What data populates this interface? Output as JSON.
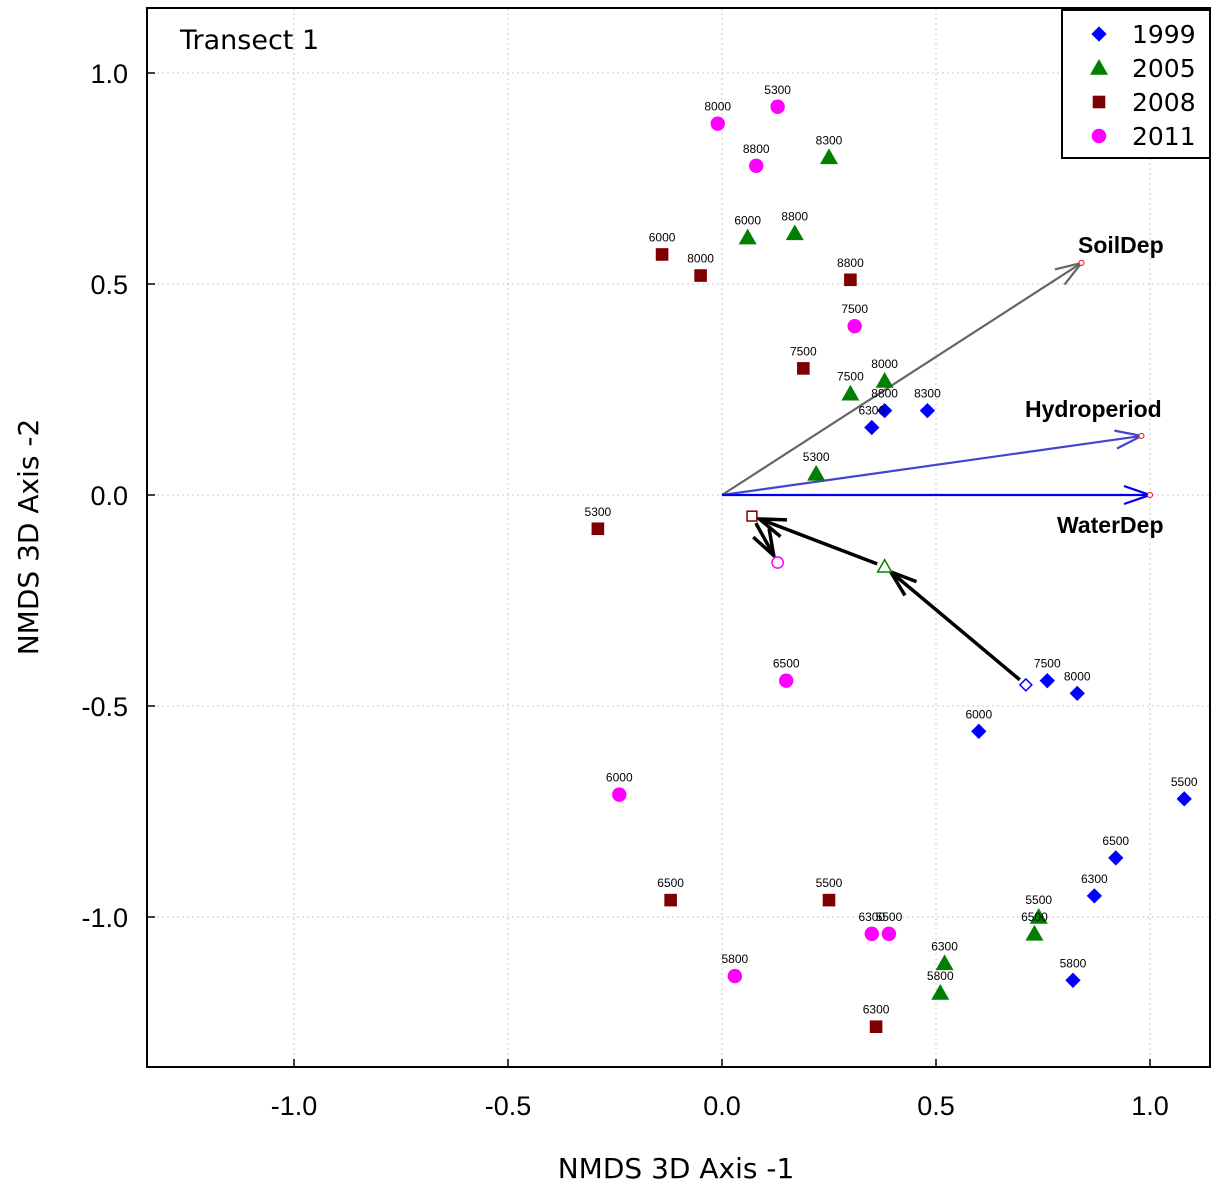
{
  "chart_data": {
    "type": "scatter",
    "title": "Transect 1",
    "xlabel": "NMDS 3D Axis -1",
    "ylabel": "NMDS 3D Axis -2",
    "xlim": [
      -1.35,
      1.15
    ],
    "ylim": [
      -1.35,
      1.15
    ],
    "xticks": [
      -1.0,
      -0.5,
      0.0,
      0.5,
      1.0
    ],
    "yticks": [
      1.0,
      0.5,
      0.0,
      -0.5,
      -1.0
    ],
    "xtick_labels": [
      "-1.0",
      "-0.5",
      "0.0",
      "0.5",
      "1.0"
    ],
    "ytick_labels": [
      "1.0",
      "0.5",
      "0.0",
      "-0.5",
      "-1.0"
    ],
    "grid": true,
    "legend_position": "top-right",
    "series": [
      {
        "name": "1999",
        "marker": "diamond",
        "color": "#0000ff",
        "points": [
          {
            "x": 0.38,
            "y": 0.2,
            "label": "8800"
          },
          {
            "x": 0.35,
            "y": 0.16,
            "label": "6300"
          },
          {
            "x": 0.48,
            "y": 0.2,
            "label": "8300"
          },
          {
            "x": 0.76,
            "y": -0.44,
            "label": "7500"
          },
          {
            "x": 0.83,
            "y": -0.47,
            "label": "8000"
          },
          {
            "x": 0.6,
            "y": -0.56,
            "label": "6000"
          },
          {
            "x": 1.08,
            "y": -0.72,
            "label": "5500"
          },
          {
            "x": 0.92,
            "y": -0.86,
            "label": "6500"
          },
          {
            "x": 0.87,
            "y": -0.95,
            "label": "6300"
          },
          {
            "x": 0.82,
            "y": -1.15,
            "label": "5800"
          }
        ]
      },
      {
        "name": "2005",
        "marker": "triangle",
        "color": "#007f00",
        "points": [
          {
            "x": 0.25,
            "y": 0.8,
            "label": "8300"
          },
          {
            "x": 0.06,
            "y": 0.61,
            "label": "6000"
          },
          {
            "x": 0.17,
            "y": 0.62,
            "label": "8800"
          },
          {
            "x": 0.38,
            "y": 0.27,
            "label": "8000"
          },
          {
            "x": 0.3,
            "y": 0.24,
            "label": "7500"
          },
          {
            "x": 0.22,
            "y": 0.05,
            "label": "5300"
          },
          {
            "x": 0.74,
            "y": -1.0,
            "label": "5500"
          },
          {
            "x": 0.73,
            "y": -1.04,
            "label": "6500"
          },
          {
            "x": 0.52,
            "y": -1.11,
            "label": "6300"
          },
          {
            "x": 0.51,
            "y": -1.18,
            "label": "5800"
          }
        ]
      },
      {
        "name": "2008",
        "marker": "square",
        "color": "#7f0000",
        "points": [
          {
            "x": -0.14,
            "y": 0.57,
            "label": "6000"
          },
          {
            "x": -0.05,
            "y": 0.52,
            "label": "8000"
          },
          {
            "x": 0.3,
            "y": 0.51,
            "label": "8800"
          },
          {
            "x": 0.19,
            "y": 0.3,
            "label": "7500"
          },
          {
            "x": -0.29,
            "y": -0.08,
            "label": "5300"
          },
          {
            "x": -0.12,
            "y": -0.96,
            "label": "6500"
          },
          {
            "x": 0.25,
            "y": -0.96,
            "label": "5500"
          },
          {
            "x": 0.36,
            "y": -1.26,
            "label": "6300"
          }
        ]
      },
      {
        "name": "2011",
        "marker": "circle",
        "color": "#ff00ff",
        "points": [
          {
            "x": 0.13,
            "y": 0.92,
            "label": "5300"
          },
          {
            "x": -0.01,
            "y": 0.88,
            "label": "8000"
          },
          {
            "x": 0.08,
            "y": 0.78,
            "label": "8800"
          },
          {
            "x": 0.31,
            "y": 0.4,
            "label": "7500"
          },
          {
            "x": 0.15,
            "y": -0.44,
            "label": "6500"
          },
          {
            "x": -0.24,
            "y": -0.71,
            "label": "6000"
          },
          {
            "x": 0.35,
            "y": -1.04,
            "label": "6300"
          },
          {
            "x": 0.39,
            "y": -1.04,
            "label": "5500"
          },
          {
            "x": 0.03,
            "y": -1.14,
            "label": "5800"
          }
        ]
      }
    ],
    "centroid_path": [
      {
        "x": 0.71,
        "y": -0.45,
        "marker": "diamond",
        "color": "#0000ff"
      },
      {
        "x": 0.38,
        "y": -0.17,
        "marker": "triangle",
        "color": "#007f00"
      },
      {
        "x": 0.07,
        "y": -0.05,
        "marker": "square",
        "color": "#7f0000"
      },
      {
        "x": 0.13,
        "y": -0.16,
        "marker": "circle",
        "color": "#ff00ff"
      }
    ],
    "vectors": [
      {
        "name": "SoilDep",
        "x": 0.84,
        "y": 0.55,
        "color": "#666666"
      },
      {
        "name": "Hydroperiod",
        "x": 0.98,
        "y": 0.14,
        "color": "#4444cc"
      },
      {
        "name": "WaterDep",
        "x": 1.0,
        "y": 0.0,
        "color": "#0000ee"
      }
    ]
  }
}
